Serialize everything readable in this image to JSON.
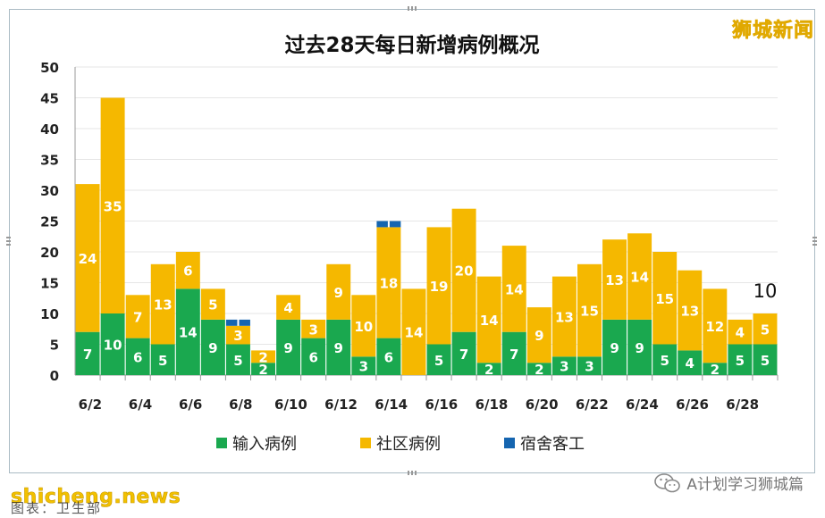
{
  "brand": "狮城新闻",
  "watermark": "shicheng.news",
  "caption": "图表：卫生部",
  "wechat_account": "A计划学习狮城篇",
  "colors": {
    "import": "#1aa84f",
    "community": "#f5b800",
    "dorm": "#1565b0",
    "grid": "#e6e6e6",
    "axis": "#9a9a9a"
  },
  "chart_data": {
    "type": "bar",
    "stacked": true,
    "title": "过去28天每日新增病例概况",
    "categories": [
      "6/2",
      "6/3",
      "6/4",
      "6/5",
      "6/6",
      "6/7",
      "6/8",
      "6/9",
      "6/10",
      "6/11",
      "6/12",
      "6/13",
      "6/14",
      "6/15",
      "6/16",
      "6/17",
      "6/18",
      "6/19",
      "6/20",
      "6/21",
      "6/22",
      "6/23",
      "6/24",
      "6/25",
      "6/26",
      "6/27",
      "6/28",
      "6/29"
    ],
    "tick_labels": [
      "6/2",
      "6/4",
      "6/6",
      "6/8",
      "6/10",
      "6/12",
      "6/14",
      "6/16",
      "6/18",
      "6/20",
      "6/22",
      "6/24",
      "6/26",
      "6/28"
    ],
    "series": [
      {
        "name": "输入病例",
        "color": "#1aa84f",
        "values": [
          7,
          10,
          6,
          5,
          14,
          9,
          5,
          2,
          9,
          6,
          9,
          3,
          6,
          0,
          5,
          7,
          2,
          7,
          2,
          3,
          3,
          9,
          9,
          5,
          4,
          2,
          5,
          5
        ]
      },
      {
        "name": "社区病例",
        "color": "#f5b800",
        "values": [
          24,
          35,
          7,
          13,
          6,
          5,
          3,
          2,
          4,
          3,
          9,
          10,
          18,
          14,
          19,
          20,
          14,
          14,
          9,
          13,
          15,
          13,
          14,
          15,
          13,
          12,
          4,
          5
        ]
      },
      {
        "name": "宿舍客工",
        "color": "#1565b0",
        "values": [
          0,
          0,
          0,
          0,
          0,
          0,
          1,
          0,
          0,
          0,
          0,
          0,
          1,
          0,
          0,
          0,
          0,
          0,
          0,
          0,
          0,
          0,
          0,
          0,
          0,
          0,
          0,
          0
        ]
      }
    ],
    "annotations": [
      {
        "category": "6/29",
        "text": "10"
      }
    ],
    "ylim": [
      0,
      50
    ],
    "yticks": [
      0,
      5,
      10,
      15,
      20,
      25,
      30,
      35,
      40,
      45,
      50
    ],
    "grid": true,
    "legend": "bottom",
    "xlabel": "",
    "ylabel": ""
  }
}
